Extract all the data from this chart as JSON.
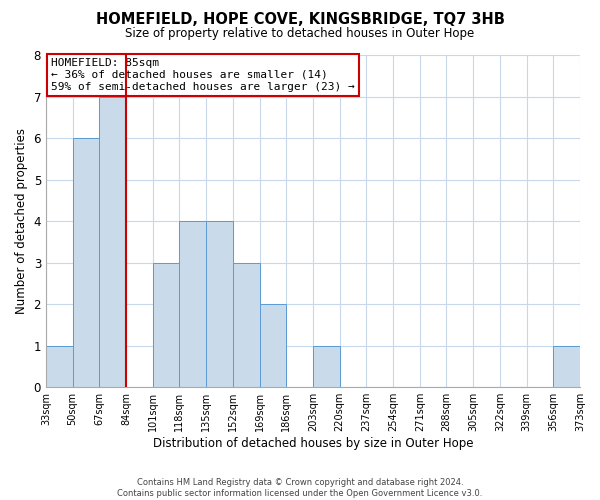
{
  "title": "HOMEFIELD, HOPE COVE, KINGSBRIDGE, TQ7 3HB",
  "subtitle": "Size of property relative to detached houses in Outer Hope",
  "xlabel": "Distribution of detached houses by size in Outer Hope",
  "ylabel": "Number of detached properties",
  "bin_edges": [
    33,
    50,
    67,
    84,
    101,
    118,
    135,
    152,
    169,
    186,
    203,
    220,
    237,
    254,
    271,
    288,
    305,
    322,
    339,
    356,
    373
  ],
  "bin_labels": [
    "33sqm",
    "50sqm",
    "67sqm",
    "84sqm",
    "101sqm",
    "118sqm",
    "135sqm",
    "152sqm",
    "169sqm",
    "186sqm",
    "203sqm",
    "220sqm",
    "237sqm",
    "254sqm",
    "271sqm",
    "288sqm",
    "305sqm",
    "322sqm",
    "339sqm",
    "356sqm",
    "373sqm"
  ],
  "counts": [
    1,
    6,
    7,
    0,
    3,
    4,
    4,
    3,
    2,
    0,
    1,
    0,
    0,
    0,
    0,
    0,
    0,
    0,
    0,
    1,
    0
  ],
  "bar_color": "#c9daea",
  "bar_edge_color": "#5b9bd5",
  "property_line_x": 84,
  "property_line_color": "#cc0000",
  "ylim": [
    0,
    8
  ],
  "yticks": [
    0,
    1,
    2,
    3,
    4,
    5,
    6,
    7,
    8
  ],
  "annotation_title": "HOMEFIELD: 85sqm",
  "annotation_line1": "← 36% of detached houses are smaller (14)",
  "annotation_line2": "59% of semi-detached houses are larger (23) →",
  "annotation_box_color": "#cc0000",
  "footer_line1": "Contains HM Land Registry data © Crown copyright and database right 2024.",
  "footer_line2": "Contains public sector information licensed under the Open Government Licence v3.0.",
  "background_color": "#ffffff",
  "grid_color": "#c8d8ea"
}
